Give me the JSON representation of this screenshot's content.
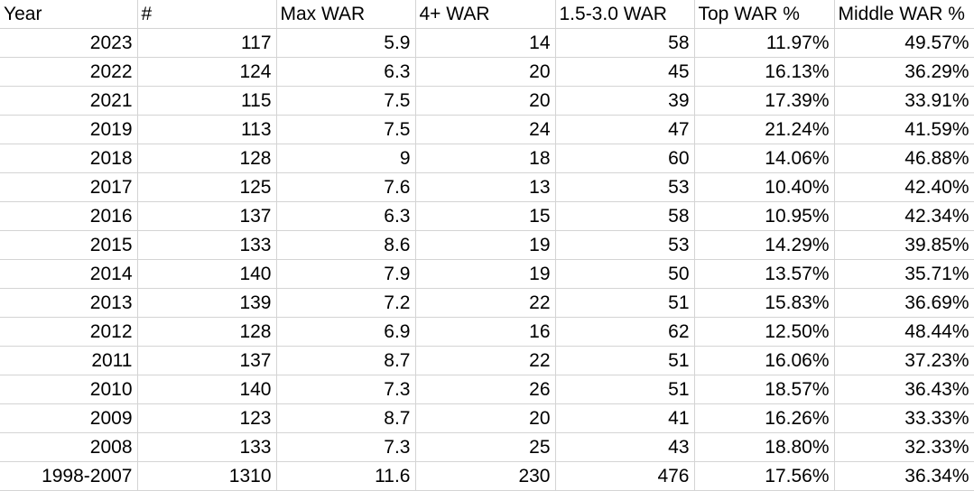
{
  "table": {
    "headers": [
      "Year",
      "#",
      "Max WAR",
      "4+ WAR",
      "1.5-3.0 WAR",
      "Top WAR %",
      "Middle WAR %"
    ],
    "rows": [
      [
        "2023",
        "117",
        "5.9",
        "14",
        "58",
        "11.97%",
        "49.57%"
      ],
      [
        "2022",
        "124",
        "6.3",
        "20",
        "45",
        "16.13%",
        "36.29%"
      ],
      [
        "2021",
        "115",
        "7.5",
        "20",
        "39",
        "17.39%",
        "33.91%"
      ],
      [
        "2019",
        "113",
        "7.5",
        "24",
        "47",
        "21.24%",
        "41.59%"
      ],
      [
        "2018",
        "128",
        "9",
        "18",
        "60",
        "14.06%",
        "46.88%"
      ],
      [
        "2017",
        "125",
        "7.6",
        "13",
        "53",
        "10.40%",
        "42.40%"
      ],
      [
        "2016",
        "137",
        "6.3",
        "15",
        "58",
        "10.95%",
        "42.34%"
      ],
      [
        "2015",
        "133",
        "8.6",
        "19",
        "53",
        "14.29%",
        "39.85%"
      ],
      [
        "2014",
        "140",
        "7.9",
        "19",
        "50",
        "13.57%",
        "35.71%"
      ],
      [
        "2013",
        "139",
        "7.2",
        "22",
        "51",
        "15.83%",
        "36.69%"
      ],
      [
        "2012",
        "128",
        "6.9",
        "16",
        "62",
        "12.50%",
        "48.44%"
      ],
      [
        "2011",
        "137",
        "8.7",
        "22",
        "51",
        "16.06%",
        "37.23%"
      ],
      [
        "2010",
        "140",
        "7.3",
        "26",
        "51",
        "18.57%",
        "36.43%"
      ],
      [
        "2009",
        "123",
        "8.7",
        "20",
        "41",
        "16.26%",
        "33.33%"
      ],
      [
        "2008",
        "133",
        "7.3",
        "25",
        "43",
        "18.80%",
        "32.33%"
      ],
      [
        "1998-2007",
        "1310",
        "11.6",
        "230",
        "476",
        "17.56%",
        "36.34%"
      ]
    ]
  }
}
